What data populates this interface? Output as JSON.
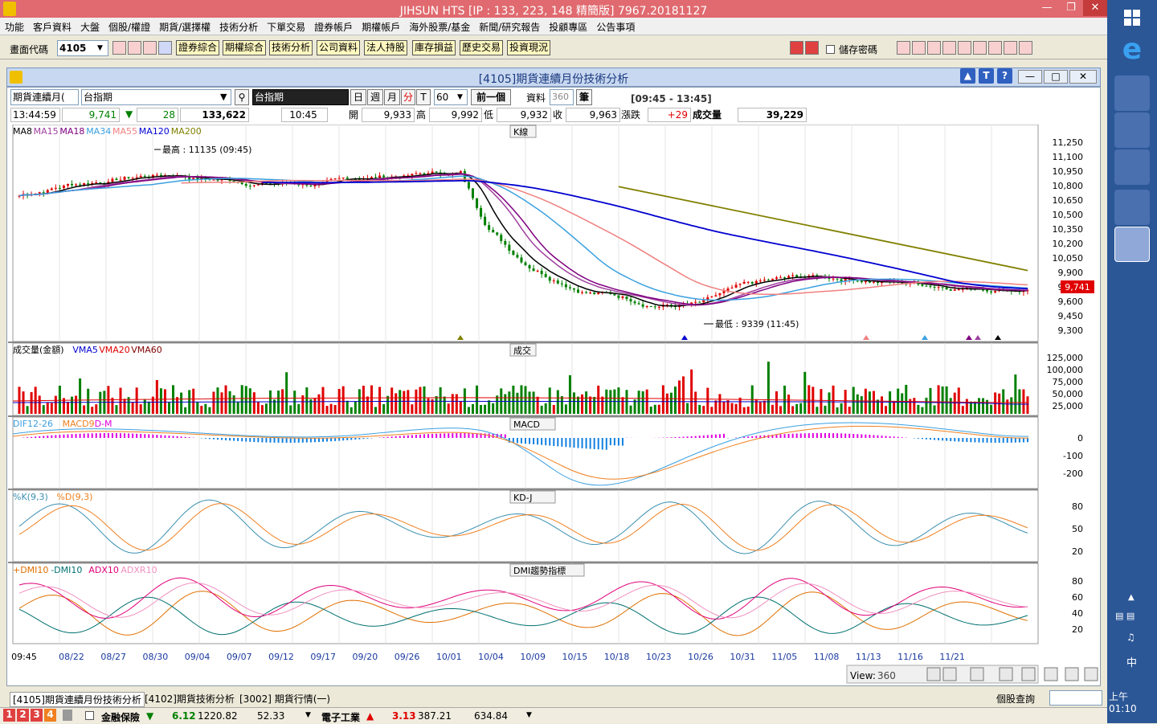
{
  "window": {
    "title": "JIHSUN HTS     [IP : 133, 223, 148 精簡版] 7967.20181127"
  },
  "menu": [
    "功能",
    "客戶資料",
    "大盤",
    "個股/權證",
    "期貨/選擇權",
    "技術分析",
    "下單交易",
    "證券帳戶",
    "期權帳戶",
    "海外股票/基金",
    "新聞/研究報告",
    "投顧專區",
    "公告事項"
  ],
  "toolbar": {
    "code_label": "畫面代碼",
    "code_value": "4105",
    "buttons": [
      "證券綜合",
      "期權綜合",
      "技術分析",
      "公司資料",
      "法人持股",
      "庫存損益",
      "歷史交易",
      "投資現況"
    ],
    "save_pw": "儲存密碼"
  },
  "child": {
    "title": "[4105]期貨連續月份技術分析"
  },
  "controls": {
    "product_type": "期貨連續月(",
    "product_name": "台指期",
    "selected": "台指期",
    "periods": [
      "日",
      "週",
      "月",
      "分",
      "T"
    ],
    "interval": "60",
    "prev_btn": "前一個",
    "data_label": "資料",
    "data_count": "360",
    "unit": "筆",
    "time_range": "[09:45 - 13:45]"
  },
  "quote": {
    "time": "13:44:59",
    "price": "9,741",
    "change": "28",
    "amount": "133,622",
    "t2": "10:45",
    "open_label": "開",
    "open": "9,933",
    "high_label": "高",
    "high": "9,992",
    "low_label": "低",
    "low": "9,932",
    "close_label": "收",
    "close": "9,963",
    "chg_label": "漲跌",
    "chg": "+29",
    "vol_label": "成交量",
    "vol": "39,229"
  },
  "panes": {
    "k": {
      "title": "K線",
      "legend": [
        "MA8",
        "MA15",
        "MA18",
        "MA34",
        "MA55",
        "MA120",
        "MA200"
      ],
      "high_note": "最高 : 11135 (09:45)",
      "low_note": "最低 : 9339 (11:45)",
      "price_tag": "9,741",
      "yticks": [
        "11,250",
        "11,100",
        "10,950",
        "10,800",
        "10,650",
        "10,500",
        "10,350",
        "10,200",
        "10,050",
        "9,900",
        "9,750",
        "9,600",
        "9,450",
        "9,300"
      ]
    },
    "vol": {
      "title": "成交",
      "legend": [
        "成交量(金額)",
        "VMA5",
        "VMA20",
        "VMA60"
      ],
      "yticks": [
        "125,000",
        "100,000",
        "75,000",
        "50,000",
        "25,000"
      ]
    },
    "macd": {
      "title": "MACD",
      "legend": [
        "DIF12-26",
        "MACD9",
        "D-M"
      ],
      "yticks": [
        "0",
        "-100",
        "-200"
      ]
    },
    "kd": {
      "title": "KD-J",
      "legend": [
        "%K(9,3)",
        "%D(9,3)"
      ],
      "yticks": [
        "80",
        "50",
        "20"
      ]
    },
    "dmi": {
      "title": "DMI趨勢指標",
      "legend": [
        "+DMI10",
        "-DMI10",
        "ADX10",
        "ADXR10"
      ],
      "yticks": [
        "80",
        "60",
        "40",
        "20"
      ]
    }
  },
  "xaxis": [
    "09:45",
    "08/22",
    "08/27",
    "08/30",
    "09/04",
    "09/07",
    "09/12",
    "09/17",
    "09/20",
    "09/26",
    "10/01",
    "10/04",
    "10/09",
    "10/15",
    "10/18",
    "10/23",
    "10/26",
    "10/31",
    "11/05",
    "11/08",
    "11/13",
    "11/16",
    "11/21"
  ],
  "view": {
    "label": "View:",
    "value": "360"
  },
  "tabs": [
    "[4105]期貨連續月份技術分析",
    "[4102]期貨技術分析",
    "[3002] 期貨行情(一)"
  ],
  "status": {
    "query_label": "個股查詢",
    "nums": [
      "1",
      "2",
      "3",
      "4"
    ],
    "s1_name": "金融保險",
    "s1_chg": "6.12",
    "s1_idx": "1220.82",
    "s1_v": "52.33",
    "s2_name": "電子工業",
    "s2_chg": "3.13",
    "s2_idx": "387.21",
    "s2_v": "634.84",
    "clock": "上午 01:10",
    "ime": "中"
  },
  "colors": {
    "up": "#e00000",
    "down": "#008000",
    "ma8": "#000000",
    "ma15": "#a040a0",
    "ma18": "#800080",
    "ma34": "#3aa0e0",
    "ma55": "#f08080",
    "ma120": "#0000d0",
    "ma200": "#808000"
  }
}
